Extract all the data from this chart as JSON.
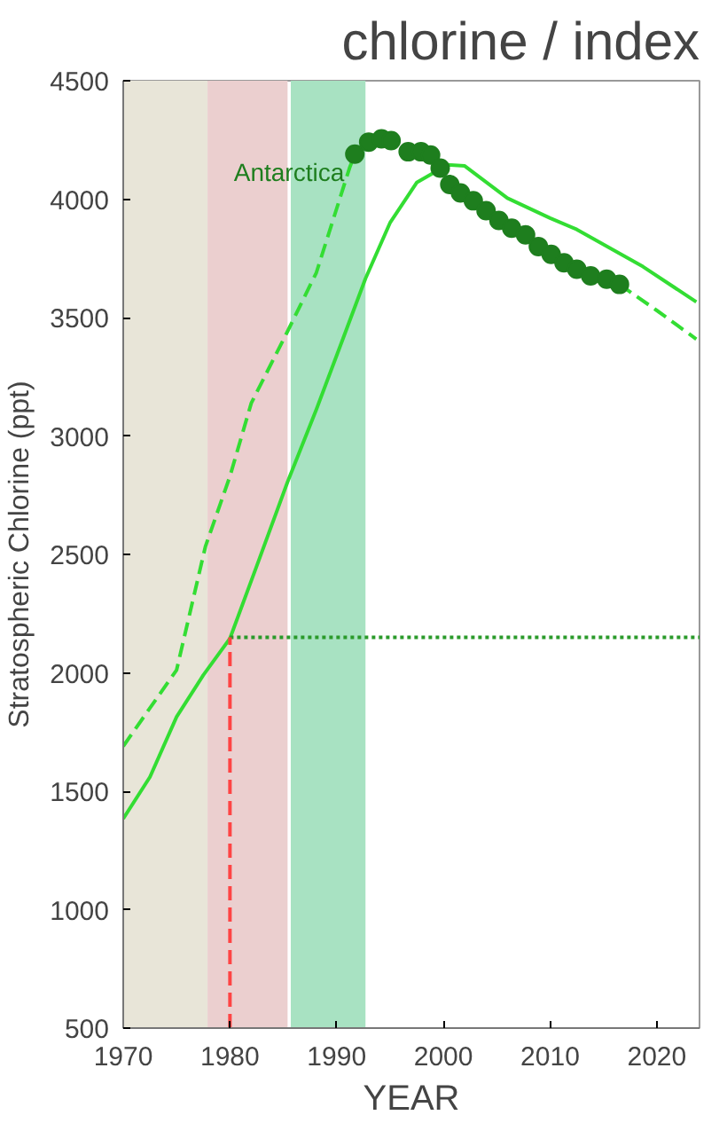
{
  "chart_data": {
    "type": "line",
    "title": "chlorine / index",
    "xlabel": "YEAR",
    "ylabel": "Stratospheric Chlorine (ppt)",
    "xlim": [
      1970,
      2024
    ],
    "xticks": [
      1970,
      1980,
      1990,
      2000,
      2010,
      2020
    ],
    "ylim": [
      500,
      4500
    ],
    "yticks": [
      500,
      1000,
      1500,
      2000,
      2500,
      3000,
      3500,
      4000,
      4500
    ],
    "grid": false,
    "bands": [
      {
        "axis": "x",
        "from": 1970,
        "to": 1977.9,
        "color": "#e8e5d8"
      },
      {
        "axis": "x",
        "from": 1977.9,
        "to": 1985.4,
        "color": "#ebcfcf"
      },
      {
        "axis": "x",
        "from": 1985.7,
        "to": 1992.7,
        "color": "#a8e2c2"
      }
    ],
    "series": [
      {
        "color": "#33dd33",
        "line_style": "solid",
        "x": [
          1970,
          1972.5,
          1975,
          1977.5,
          1980,
          1982.5,
          1985.4,
          1988.1,
          1990.5,
          1992.7,
          1995,
          1997.5,
          2000.4,
          2002,
          2006,
          2010,
          2012.5,
          2018.7,
          2023.7
        ],
        "values": [
          1384,
          1560,
          1814,
          1990,
          2145,
          2450,
          2806,
          3112,
          3400,
          3665,
          3900,
          4070,
          4145,
          4140,
          4004,
          3920,
          3872,
          3715,
          3566
        ]
      },
      {
        "color": "#33dd33",
        "line_style": "dashed",
        "x": [
          1970,
          1975,
          1977.7,
          1980,
          1982,
          1985.4,
          1988.1,
          1991.2,
          1991.7
        ],
        "values": [
          1690,
          2012,
          2533,
          2830,
          3139,
          3442,
          3690,
          4131,
          4190
        ]
      },
      {
        "color": "#33dd33",
        "line_style": "dashed",
        "x": [
          2016.5,
          2020,
          2023.7
        ],
        "values": [
          3640,
          3530,
          3409
        ]
      },
      {
        "type": "scatter",
        "name": "Antarctica",
        "color": "#1e7e1e",
        "marker": "circle",
        "x": [
          1991.7,
          1993.0,
          1994.2,
          1995.1,
          1996.7,
          1997.9,
          1998.8,
          1999.7,
          2000.6,
          2001.6,
          2002.8,
          2004.0,
          2005.2,
          2006.4,
          2007.7,
          2008.9,
          2010.1,
          2011.3,
          2012.5,
          2013.8,
          2015.3,
          2016.5
        ],
        "values": [
          4190,
          4241,
          4255,
          4247,
          4200,
          4200,
          4186,
          4131,
          4062,
          4026,
          3993,
          3951,
          3910,
          3877,
          3849,
          3800,
          3767,
          3731,
          3704,
          3676,
          3662,
          3640
        ]
      },
      {
        "color": "#2a9a2a",
        "line_style": "dotted",
        "x": [
          1980,
          2024
        ],
        "values": [
          2150,
          2150
        ]
      },
      {
        "color": "#ff4444",
        "line_style": "dashed",
        "x": [
          1980,
          1980
        ],
        "values": [
          500,
          2150
        ]
      }
    ]
  }
}
